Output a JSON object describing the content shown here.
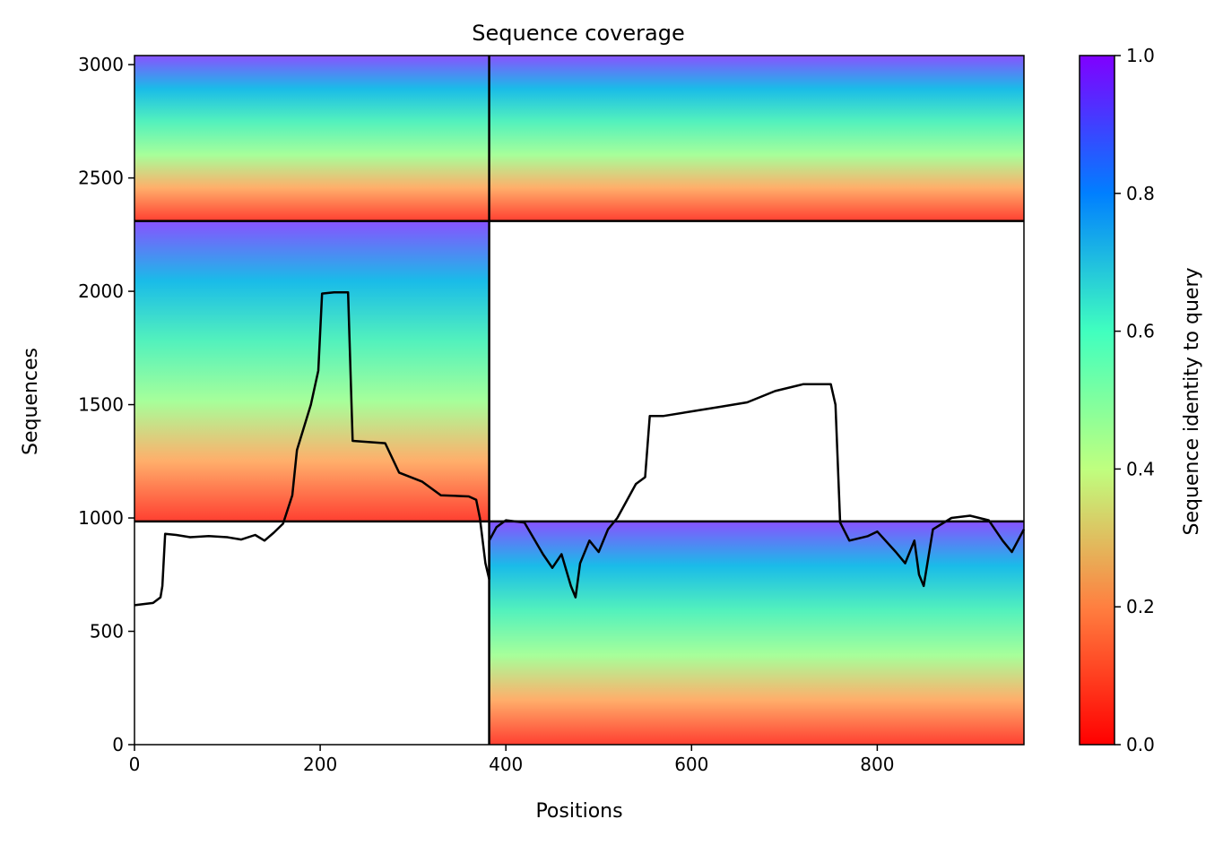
{
  "chart_data": {
    "type": "heatmap",
    "title": "Sequence coverage",
    "xlabel": "Positions",
    "ylabel": "Sequences",
    "xlim": [
      0,
      958
    ],
    "ylim": [
      0,
      3040
    ],
    "xticks": [
      0,
      200,
      400,
      600,
      800
    ],
    "yticks": [
      0,
      500,
      1000,
      1500,
      2000,
      2500,
      3000
    ],
    "colorbar": {
      "label": "Sequence identity to query",
      "range": [
        0,
        1
      ],
      "ticks": [
        "0.0",
        "0.2",
        "0.4",
        "0.6",
        "0.8",
        "1.0"
      ],
      "colormap": "rainbow_r",
      "colors": [
        "#ff0000",
        "#ff7f40",
        "#bfff7f",
        "#40ffbf",
        "#007fff",
        "#8000ff"
      ]
    },
    "boundaries": {
      "x": 382,
      "y": [
        985,
        2310
      ]
    },
    "blocks": [
      {
        "x0": 0,
        "x1": 382,
        "y0": 2310,
        "y1": 3040
      },
      {
        "x0": 382,
        "x1": 958,
        "y0": 2310,
        "y1": 3040
      },
      {
        "x0": 0,
        "x1": 382,
        "y0": 985,
        "y1": 2310
      },
      {
        "x0": 382,
        "x1": 958,
        "y0": 0,
        "y1": 985
      }
    ],
    "series": [
      {
        "kind": "coverage",
        "color": "#000000",
        "points": [
          [
            0,
            615
          ],
          [
            20,
            625
          ],
          [
            28,
            650
          ],
          [
            30,
            700
          ],
          [
            33,
            930
          ],
          [
            45,
            925
          ],
          [
            60,
            915
          ],
          [
            80,
            920
          ],
          [
            100,
            915
          ],
          [
            115,
            905
          ],
          [
            130,
            925
          ],
          [
            140,
            900
          ],
          [
            150,
            935
          ],
          [
            160,
            975
          ],
          [
            170,
            1100
          ],
          [
            175,
            1300
          ],
          [
            190,
            1500
          ],
          [
            198,
            1650
          ],
          [
            202,
            1990
          ],
          [
            215,
            1995
          ],
          [
            230,
            1995
          ],
          [
            235,
            1340
          ],
          [
            270,
            1330
          ],
          [
            285,
            1200
          ],
          [
            310,
            1160
          ],
          [
            330,
            1100
          ],
          [
            360,
            1095
          ],
          [
            368,
            1080
          ],
          [
            372,
            1000
          ],
          [
            378,
            800
          ],
          [
            382,
            730
          ],
          [
            382,
            900
          ],
          [
            390,
            960
          ],
          [
            400,
            990
          ],
          [
            420,
            980
          ],
          [
            440,
            840
          ],
          [
            450,
            780
          ],
          [
            460,
            840
          ],
          [
            470,
            700
          ],
          [
            475,
            650
          ],
          [
            480,
            800
          ],
          [
            490,
            900
          ],
          [
            500,
            850
          ],
          [
            510,
            950
          ],
          [
            520,
            1000
          ],
          [
            540,
            1150
          ],
          [
            550,
            1180
          ],
          [
            555,
            1450
          ],
          [
            570,
            1450
          ],
          [
            600,
            1470
          ],
          [
            630,
            1490
          ],
          [
            660,
            1510
          ],
          [
            690,
            1560
          ],
          [
            720,
            1590
          ],
          [
            750,
            1590
          ],
          [
            755,
            1500
          ],
          [
            760,
            980
          ],
          [
            770,
            900
          ],
          [
            790,
            920
          ],
          [
            800,
            940
          ],
          [
            820,
            850
          ],
          [
            830,
            800
          ],
          [
            840,
            900
          ],
          [
            845,
            750
          ],
          [
            850,
            700
          ],
          [
            860,
            950
          ],
          [
            880,
            1000
          ],
          [
            900,
            1010
          ],
          [
            920,
            990
          ],
          [
            935,
            900
          ],
          [
            945,
            850
          ],
          [
            958,
            950
          ]
        ]
      }
    ]
  }
}
